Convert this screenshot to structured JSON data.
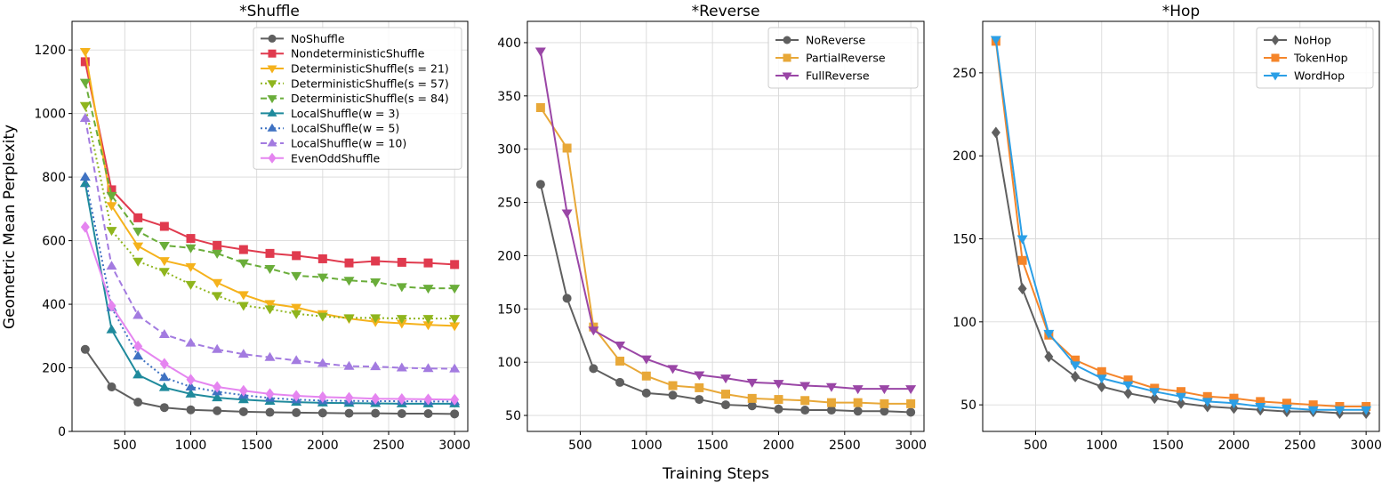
{
  "chart_data": {
    "xlabel": "Training Steps",
    "ylabel": "Geometric Mean Perplexity",
    "panels": [
      {
        "type": "line",
        "title": "*Shuffle",
        "x": [
          200,
          400,
          600,
          800,
          1000,
          1200,
          1400,
          1600,
          1800,
          2000,
          2200,
          2400,
          2600,
          2800,
          3000
        ],
        "xlim": [
          100,
          3100
        ],
        "ylim": [
          0,
          1290
        ],
        "xticks": [
          500,
          1000,
          1500,
          2000,
          2500,
          3000
        ],
        "yticks": [
          0,
          200,
          400,
          600,
          800,
          1000,
          1200
        ],
        "legend_position": "top-right",
        "series": [
          {
            "name": "NoShuffle",
            "color": "#5f5f5f",
            "marker": "circle",
            "dash": "solid",
            "values": [
              258,
              140,
              92,
              75,
              68,
              65,
              62,
              60,
              59,
              58,
              57,
              57,
              56,
              56,
              55
            ]
          },
          {
            "name": "NondeterministicShuffle",
            "color": "#e03a4e",
            "marker": "square",
            "dash": "solid",
            "values": [
              1163,
              760,
              672,
              645,
              607,
              585,
              572,
              560,
              553,
              543,
              530,
              536,
              532,
              530,
              525
            ]
          },
          {
            "name": "DeterministicShuffle(s = 21)",
            "color": "#f5b21c",
            "marker": "tri-down",
            "dash": "solid",
            "values": [
              1195,
              710,
              583,
              537,
              518,
              468,
              430,
              402,
              390,
              370,
              355,
              345,
              340,
              335,
              332
            ]
          },
          {
            "name": "DeterministicShuffle(s = 57)",
            "color": "#8fb51d",
            "marker": "tri-down",
            "dash": "dotted",
            "values": [
              1025,
              632,
              535,
              503,
              462,
              427,
              396,
              385,
              370,
              362,
              357,
              357,
              355,
              355,
              355
            ]
          },
          {
            "name": "DeterministicShuffle(s = 84)",
            "color": "#6aad3a",
            "marker": "tri-down",
            "dash": "dashed",
            "values": [
              1098,
              742,
              630,
              585,
              577,
              560,
              530,
              512,
              490,
              485,
              475,
              470,
              455,
              450,
              450
            ]
          },
          {
            "name": "LocalShuffle(w = 3)",
            "color": "#1f8a9c",
            "marker": "tri-up",
            "dash": "solid",
            "values": [
              780,
              320,
              178,
              138,
              118,
              106,
              100,
              95,
              92,
              90,
              89,
              88,
              87,
              87,
              87
            ]
          },
          {
            "name": "LocalShuffle(w = 5)",
            "color": "#3f72c2",
            "marker": "tri-up",
            "dash": "dotted",
            "values": [
              800,
              390,
              237,
              170,
              140,
              125,
              114,
              105,
              100,
              97,
              96,
              95,
              95,
              94,
              94
            ]
          },
          {
            "name": "LocalShuffle(w = 10)",
            "color": "#a37be0",
            "marker": "tri-up",
            "dash": "dashed",
            "values": [
              985,
              520,
              365,
              305,
              278,
              258,
              243,
              233,
              223,
              214,
              205,
              204,
              200,
              198,
              197
            ]
          },
          {
            "name": "EvenOddShuffle",
            "color": "#e585f0",
            "marker": "diamond",
            "dash": "solid",
            "values": [
              643,
              395,
              268,
              213,
              163,
              140,
              128,
              118,
              112,
              108,
              106,
              103,
              102,
              101,
              100
            ]
          }
        ]
      },
      {
        "type": "line",
        "title": "*Reverse",
        "x": [
          200,
          400,
          600,
          800,
          1000,
          1200,
          1400,
          1600,
          1800,
          2000,
          2200,
          2400,
          2600,
          2800,
          3000
        ],
        "xlim": [
          100,
          3100
        ],
        "ylim": [
          35,
          420
        ],
        "xticks": [
          500,
          1000,
          1500,
          2000,
          2500,
          3000
        ],
        "yticks": [
          50,
          100,
          150,
          200,
          250,
          300,
          350,
          400
        ],
        "legend_position": "top-right",
        "series": [
          {
            "name": "NoReverse",
            "color": "#5f5f5f",
            "marker": "circle",
            "dash": "solid",
            "values": [
              267,
              160,
              94,
              81,
              71,
              69,
              65,
              60,
              59,
              56,
              55,
              55,
              54,
              54,
              53
            ]
          },
          {
            "name": "PartialReverse",
            "color": "#e8a838",
            "marker": "square",
            "dash": "solid",
            "values": [
              339,
              301,
              133,
              101,
              87,
              78,
              76,
              70,
              66,
              65,
              64,
              62,
              62,
              61,
              61
            ]
          },
          {
            "name": "FullReverse",
            "color": "#9a46a6",
            "marker": "tri-down",
            "dash": "solid",
            "values": [
              392,
              240,
              130,
              116,
              103,
              94,
              88,
              85,
              81,
              80,
              78,
              77,
              75,
              75,
              75
            ]
          }
        ]
      },
      {
        "type": "line",
        "title": "*Hop",
        "x": [
          200,
          400,
          600,
          800,
          1000,
          1200,
          1400,
          1600,
          1800,
          2000,
          2200,
          2400,
          2600,
          2800,
          3000
        ],
        "xlim": [
          100,
          3100
        ],
        "ylim": [
          34,
          281
        ],
        "xticks": [
          500,
          1000,
          1500,
          2000,
          2500,
          3000
        ],
        "yticks": [
          50,
          100,
          150,
          200,
          250
        ],
        "legend_position": "top-right",
        "series": [
          {
            "name": "NoHop",
            "color": "#5f5f5f",
            "marker": "diamond",
            "dash": "solid",
            "values": [
              214,
              120,
              79,
              67,
              61,
              57,
              54,
              51,
              49,
              48,
              47,
              46,
              46,
              45,
              45
            ]
          },
          {
            "name": "TokenHop",
            "color": "#f5852a",
            "marker": "square",
            "dash": "solid",
            "values": [
              269,
              137,
              92,
              77,
              70,
              65,
              60,
              58,
              55,
              54,
              52,
              51,
              50,
              49,
              49
            ]
          },
          {
            "name": "WordHop",
            "color": "#2b9fe6",
            "marker": "tri-down",
            "dash": "solid",
            "values": [
              270,
              150,
              93,
              74,
              66,
              62,
              58,
              55,
              52,
              51,
              49,
              48,
              47,
              47,
              47
            ]
          }
        ]
      }
    ]
  }
}
